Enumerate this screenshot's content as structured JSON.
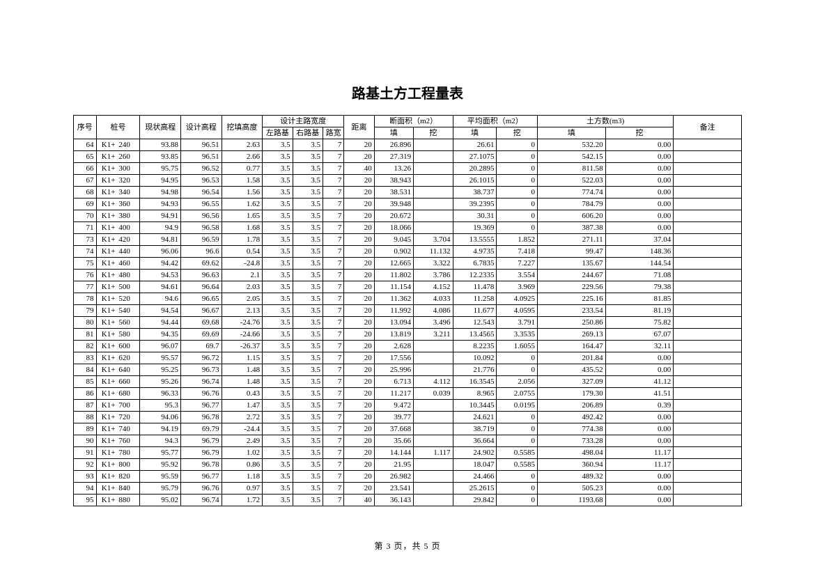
{
  "title": "路基土方工程量表",
  "footer": "第 3 页，共 5 页",
  "header": {
    "seq": "序号",
    "zhuanghao": "桩号",
    "xianzhuang": "现状高程",
    "sheji": "设计高程",
    "watian": "挖填高度",
    "shejizhulukuandu": "设计主路宽度",
    "zuoluji": "左路基",
    "youluji": "右路基",
    "lukuan": "路宽",
    "juli": "距离",
    "duanmianji": "断面积（m2）",
    "pingjun": "平均面积（m2）",
    "tufangshu": "土方数(m3)",
    "tian": "填",
    "wa": "挖",
    "beizhu": "备注"
  },
  "table": {
    "columns": [
      "seq",
      "zh1",
      "zh2",
      "xz",
      "sj",
      "wt",
      "zlj",
      "ylj",
      "lk",
      "jl",
      "dm_t",
      "dm_w",
      "pj_t",
      "pj_w",
      "tf_t",
      "tf_w",
      "bz"
    ],
    "rows": [
      [
        "64",
        "K1+",
        "240",
        "93.88",
        "96.51",
        "2.63",
        "3.5",
        "3.5",
        "7",
        "20",
        "26.896",
        "",
        "26.61",
        "0",
        "532.20",
        "0.00",
        ""
      ],
      [
        "65",
        "K1+",
        "260",
        "93.85",
        "96.51",
        "2.66",
        "3.5",
        "3.5",
        "7",
        "20",
        "27.319",
        "",
        "27.1075",
        "0",
        "542.15",
        "0.00",
        ""
      ],
      [
        "66",
        "K1+",
        "300",
        "95.75",
        "96.52",
        "0.77",
        "3.5",
        "3.5",
        "7",
        "40",
        "13.26",
        "",
        "20.2895",
        "0",
        "811.58",
        "0.00",
        ""
      ],
      [
        "67",
        "K1+",
        "320",
        "94.95",
        "96.53",
        "1.58",
        "3.5",
        "3.5",
        "7",
        "20",
        "38.943",
        "",
        "26.1015",
        "0",
        "522.03",
        "0.00",
        ""
      ],
      [
        "68",
        "K1+",
        "340",
        "94.98",
        "96.54",
        "1.56",
        "3.5",
        "3.5",
        "7",
        "20",
        "38.531",
        "",
        "38.737",
        "0",
        "774.74",
        "0.00",
        ""
      ],
      [
        "69",
        "K1+",
        "360",
        "94.93",
        "96.55",
        "1.62",
        "3.5",
        "3.5",
        "7",
        "20",
        "39.948",
        "",
        "39.2395",
        "0",
        "784.79",
        "0.00",
        ""
      ],
      [
        "70",
        "K1+",
        "380",
        "94.91",
        "96.56",
        "1.65",
        "3.5",
        "3.5",
        "7",
        "20",
        "20.672",
        "",
        "30.31",
        "0",
        "606.20",
        "0.00",
        ""
      ],
      [
        "71",
        "K1+",
        "400",
        "94.9",
        "96.58",
        "1.68",
        "3.5",
        "3.5",
        "7",
        "20",
        "18.066",
        "",
        "19.369",
        "0",
        "387.38",
        "0.00",
        ""
      ],
      [
        "73",
        "K1+",
        "420",
        "94.81",
        "96.59",
        "1.78",
        "3.5",
        "3.5",
        "7",
        "20",
        "9.045",
        "3.704",
        "13.5555",
        "1.852",
        "271.11",
        "37.04",
        ""
      ],
      [
        "74",
        "K1+",
        "440",
        "96.06",
        "96.6",
        "0.54",
        "3.5",
        "3.5",
        "7",
        "20",
        "0.902",
        "11.132",
        "4.9735",
        "7.418",
        "99.47",
        "148.36",
        ""
      ],
      [
        "75",
        "K1+",
        "460",
        "94.42",
        "69.62",
        "-24.8",
        "3.5",
        "3.5",
        "7",
        "20",
        "12.665",
        "3.322",
        "6.7835",
        "7.227",
        "135.67",
        "144.54",
        ""
      ],
      [
        "76",
        "K1+",
        "480",
        "94.53",
        "96.63",
        "2.1",
        "3.5",
        "3.5",
        "7",
        "20",
        "11.802",
        "3.786",
        "12.2335",
        "3.554",
        "244.67",
        "71.08",
        ""
      ],
      [
        "77",
        "K1+",
        "500",
        "94.61",
        "96.64",
        "2.03",
        "3.5",
        "3.5",
        "7",
        "20",
        "11.154",
        "4.152",
        "11.478",
        "3.969",
        "229.56",
        "79.38",
        ""
      ],
      [
        "78",
        "K1+",
        "520",
        "94.6",
        "96.65",
        "2.05",
        "3.5",
        "3.5",
        "7",
        "20",
        "11.362",
        "4.033",
        "11.258",
        "4.0925",
        "225.16",
        "81.85",
        ""
      ],
      [
        "79",
        "K1+",
        "540",
        "94.54",
        "96.67",
        "2.13",
        "3.5",
        "3.5",
        "7",
        "20",
        "11.992",
        "4.086",
        "11.677",
        "4.0595",
        "233.54",
        "81.19",
        ""
      ],
      [
        "80",
        "K1+",
        "560",
        "94.44",
        "69.68",
        "-24.76",
        "3.5",
        "3.5",
        "7",
        "20",
        "13.094",
        "3.496",
        "12.543",
        "3.791",
        "250.86",
        "75.82",
        ""
      ],
      [
        "81",
        "K1+",
        "580",
        "94.35",
        "69.69",
        "-24.66",
        "3.5",
        "3.5",
        "7",
        "20",
        "13.819",
        "3.211",
        "13.4565",
        "3.3535",
        "269.13",
        "67.07",
        ""
      ],
      [
        "82",
        "K1+",
        "600",
        "96.07",
        "69.7",
        "-26.37",
        "3.5",
        "3.5",
        "7",
        "20",
        "2.628",
        "",
        "8.2235",
        "1.6055",
        "164.47",
        "32.11",
        ""
      ],
      [
        "83",
        "K1+",
        "620",
        "95.57",
        "96.72",
        "1.15",
        "3.5",
        "3.5",
        "7",
        "20",
        "17.556",
        "",
        "10.092",
        "0",
        "201.84",
        "0.00",
        ""
      ],
      [
        "84",
        "K1+",
        "640",
        "95.25",
        "96.73",
        "1.48",
        "3.5",
        "3.5",
        "7",
        "20",
        "25.996",
        "",
        "21.776",
        "0",
        "435.52",
        "0.00",
        ""
      ],
      [
        "85",
        "K1+",
        "660",
        "95.26",
        "96.74",
        "1.48",
        "3.5",
        "3.5",
        "7",
        "20",
        "6.713",
        "4.112",
        "16.3545",
        "2.056",
        "327.09",
        "41.12",
        ""
      ],
      [
        "86",
        "K1+",
        "680",
        "96.33",
        "96.76",
        "0.43",
        "3.5",
        "3.5",
        "7",
        "20",
        "11.217",
        "0.039",
        "8.965",
        "2.0755",
        "179.30",
        "41.51",
        ""
      ],
      [
        "87",
        "K1+",
        "700",
        "95.3",
        "96.77",
        "1.47",
        "3.5",
        "3.5",
        "7",
        "20",
        "9.472",
        "",
        "10.3445",
        "0.0195",
        "206.89",
        "0.39",
        ""
      ],
      [
        "88",
        "K1+",
        "720",
        "94.06",
        "96.78",
        "2.72",
        "3.5",
        "3.5",
        "7",
        "20",
        "39.77",
        "",
        "24.621",
        "0",
        "492.42",
        "0.00",
        ""
      ],
      [
        "89",
        "K1+",
        "740",
        "94.19",
        "69.79",
        "-24.4",
        "3.5",
        "3.5",
        "7",
        "20",
        "37.668",
        "",
        "38.719",
        "0",
        "774.38",
        "0.00",
        ""
      ],
      [
        "90",
        "K1+",
        "760",
        "94.3",
        "96.79",
        "2.49",
        "3.5",
        "3.5",
        "7",
        "20",
        "35.66",
        "",
        "36.664",
        "0",
        "733.28",
        "0.00",
        ""
      ],
      [
        "91",
        "K1+",
        "780",
        "95.77",
        "96.79",
        "1.02",
        "3.5",
        "3.5",
        "7",
        "20",
        "14.144",
        "1.117",
        "24.902",
        "0.5585",
        "498.04",
        "11.17",
        ""
      ],
      [
        "92",
        "K1+",
        "800",
        "95.92",
        "96.78",
        "0.86",
        "3.5",
        "3.5",
        "7",
        "20",
        "21.95",
        "",
        "18.047",
        "0.5585",
        "360.94",
        "11.17",
        ""
      ],
      [
        "93",
        "K1+",
        "820",
        "95.59",
        "96.77",
        "1.18",
        "3.5",
        "3.5",
        "7",
        "20",
        "26.982",
        "",
        "24.466",
        "0",
        "489.32",
        "0.00",
        ""
      ],
      [
        "94",
        "K1+",
        "840",
        "95.79",
        "96.76",
        "0.97",
        "3.5",
        "3.5",
        "7",
        "20",
        "23.541",
        "",
        "25.2615",
        "0",
        "505.23",
        "0.00",
        ""
      ],
      [
        "95",
        "K1+",
        "880",
        "95.02",
        "96.74",
        "1.72",
        "3.5",
        "3.5",
        "7",
        "40",
        "36.143",
        "",
        "29.842",
        "0",
        "1193.68",
        "0.00",
        ""
      ]
    ]
  },
  "style": {
    "background": "#ffffff",
    "border_color": "#000000",
    "font_family": "SimSun",
    "title_fontsize": 20,
    "body_fontsize": 11
  }
}
